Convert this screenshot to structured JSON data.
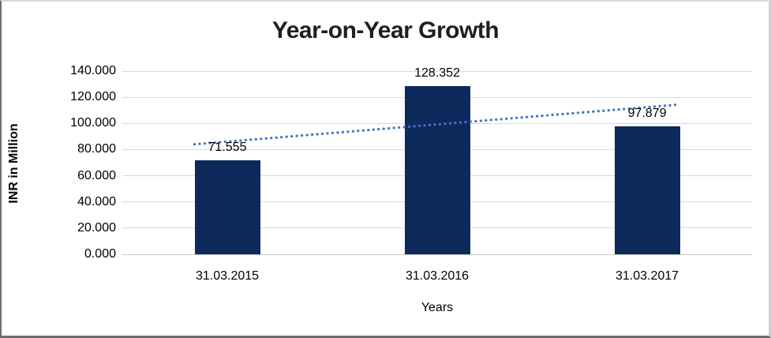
{
  "chart_data": {
    "type": "bar",
    "title": "Year-on-Year Growth",
    "categories": [
      "31.03.2015",
      "31.03.2016",
      "31.03.2017"
    ],
    "values": [
      71.555,
      128.352,
      97.879
    ],
    "data_labels": [
      "71.555",
      "128.352",
      "97.879"
    ],
    "xlabel": "Years",
    "ylabel": "INR in Million",
    "ylim": [
      0,
      140
    ],
    "ytick_step": 20,
    "ytick_labels": [
      "0.000",
      "20.000",
      "40.000",
      "60.000",
      "80.000",
      "100.000",
      "120.000",
      "140.000"
    ],
    "grid": true,
    "legend": "none",
    "trendline": "linear-dotted",
    "colors": {
      "bar": "#0E2A5C",
      "trendline": "#4472C4",
      "gridline": "#D9D9D9",
      "baseline": "#C9C9C9",
      "text": "#000000",
      "title_text": "#1f1f1f"
    }
  }
}
